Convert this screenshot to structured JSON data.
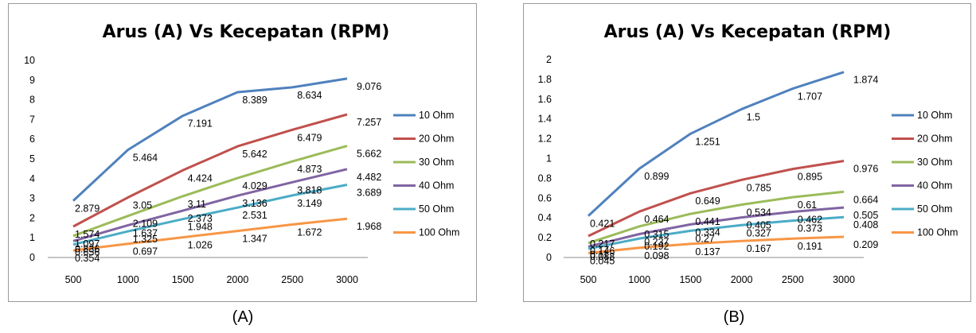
{
  "captions": [
    "(A)",
    "(B)"
  ],
  "colors": [
    "#4f81bd",
    "#c0504d",
    "#9bbb59",
    "#8064a2",
    "#4bacc6",
    "#f79646"
  ],
  "chart_data": [
    {
      "type": "line",
      "title": "Arus (A) Vs Kecepatan (RPM)",
      "xlabel": "",
      "ylabel": "",
      "x": [
        500,
        1000,
        1500,
        2000,
        2500,
        3000
      ],
      "x_ticks": [
        "500",
        "1000",
        "1500",
        "2000",
        "2500",
        "3000"
      ],
      "ylim": [
        0,
        10
      ],
      "y_ticks": [
        "0",
        "1",
        "2",
        "3",
        "4",
        "5",
        "6",
        "7",
        "8",
        "9",
        "10"
      ],
      "legend_position": "right",
      "grid": false,
      "series": [
        {
          "name": "10 Ohm",
          "values": [
            2.879,
            5.464,
            7.191,
            8.389,
            8.634,
            9.076
          ],
          "labels": [
            "2.879",
            "5.464",
            "7.191",
            "8.389",
            "8.634",
            "9.076"
          ]
        },
        {
          "name": "20 Ohm",
          "values": [
            1.574,
            3.05,
            4.424,
            5.642,
            6.479,
            7.257
          ],
          "labels": [
            "1.574",
            "3.05",
            "4.424",
            "5.642",
            "6.479",
            "7.257"
          ]
        },
        {
          "name": "30 Ohm",
          "values": [
            1.097,
            2.109,
            3.11,
            4.029,
            4.873,
            5.662
          ],
          "labels": [
            "1.097",
            "2.109",
            "3.11",
            "4.029",
            "4.873",
            "5.662"
          ]
        },
        {
          "name": "40 Ohm",
          "values": [
            0.836,
            1.637,
            2.373,
            3.136,
            3.818,
            4.482
          ],
          "labels": [
            "0.836",
            "1.637",
            "2.373",
            "3.136",
            "3.818",
            "4.482"
          ]
        },
        {
          "name": "50 Ohm",
          "values": [
            0.656,
            1.325,
            1.948,
            2.531,
            3.149,
            3.689
          ],
          "labels": [
            "0.656",
            "1.325",
            "1.948",
            "2.531",
            "3.149",
            "3.689"
          ]
        },
        {
          "name": "100 Ohm",
          "values": [
            0.354,
            0.697,
            1.026,
            1.347,
            1.672,
            1.968
          ],
          "labels": [
            "0.354",
            "0.697",
            "1.026",
            "1.347",
            "1.672",
            "1.968"
          ]
        }
      ]
    },
    {
      "type": "line",
      "title": "Arus (A) Vs Kecepatan (RPM)",
      "xlabel": "",
      "ylabel": "",
      "x": [
        500,
        1000,
        1500,
        2000,
        2500,
        3000
      ],
      "x_ticks": [
        "500",
        "1000",
        "1500",
        "2000",
        "2500",
        "3000"
      ],
      "ylim": [
        0,
        2
      ],
      "y_ticks": [
        "0",
        "0.2",
        "0.4",
        "0.6",
        "0.8",
        "1",
        "1.2",
        "1.4",
        "1.6",
        "1.8",
        "2"
      ],
      "legend_position": "right",
      "grid": false,
      "series": [
        {
          "name": "10 Ohm",
          "values": [
            0.421,
            0.899,
            1.251,
            1.5,
            1.707,
            1.874
          ],
          "labels": [
            "0.421",
            "0.899",
            "1.251",
            "1.5",
            "1.707",
            "1.874"
          ]
        },
        {
          "name": "20 Ohm",
          "values": [
            0.217,
            0.464,
            0.649,
            0.785,
            0.895,
            0.976
          ],
          "labels": [
            "0.217",
            "0.464",
            "0.649",
            "0.785",
            "0.895",
            "0.976"
          ]
        },
        {
          "name": "30 Ohm",
          "values": [
            0.146,
            0.315,
            0.441,
            0.534,
            0.61,
            0.664
          ],
          "labels": [
            "0.146",
            "0.315",
            "0.441",
            "0.534",
            "0.61",
            "0.664"
          ]
        },
        {
          "name": "40 Ohm",
          "values": [
            0.11,
            0.237,
            0.334,
            0.405,
            0.462,
            0.505
          ],
          "labels": [
            "0.11",
            "0.237",
            "0.334",
            "0.405",
            "0.462",
            "0.505"
          ]
        },
        {
          "name": "50 Ohm",
          "values": [
            0.088,
            0.192,
            0.27,
            0.327,
            0.373,
            0.408
          ],
          "labels": [
            "0.088",
            "0.192",
            "0.27",
            "0.327",
            "0.373",
            "0.408"
          ]
        },
        {
          "name": "100 Ohm",
          "values": [
            0.045,
            0.098,
            0.137,
            0.167,
            0.191,
            0.209
          ],
          "labels": [
            "0.045",
            "0.098",
            "0.137",
            "0.167",
            "0.191",
            "0.209"
          ]
        }
      ]
    }
  ]
}
